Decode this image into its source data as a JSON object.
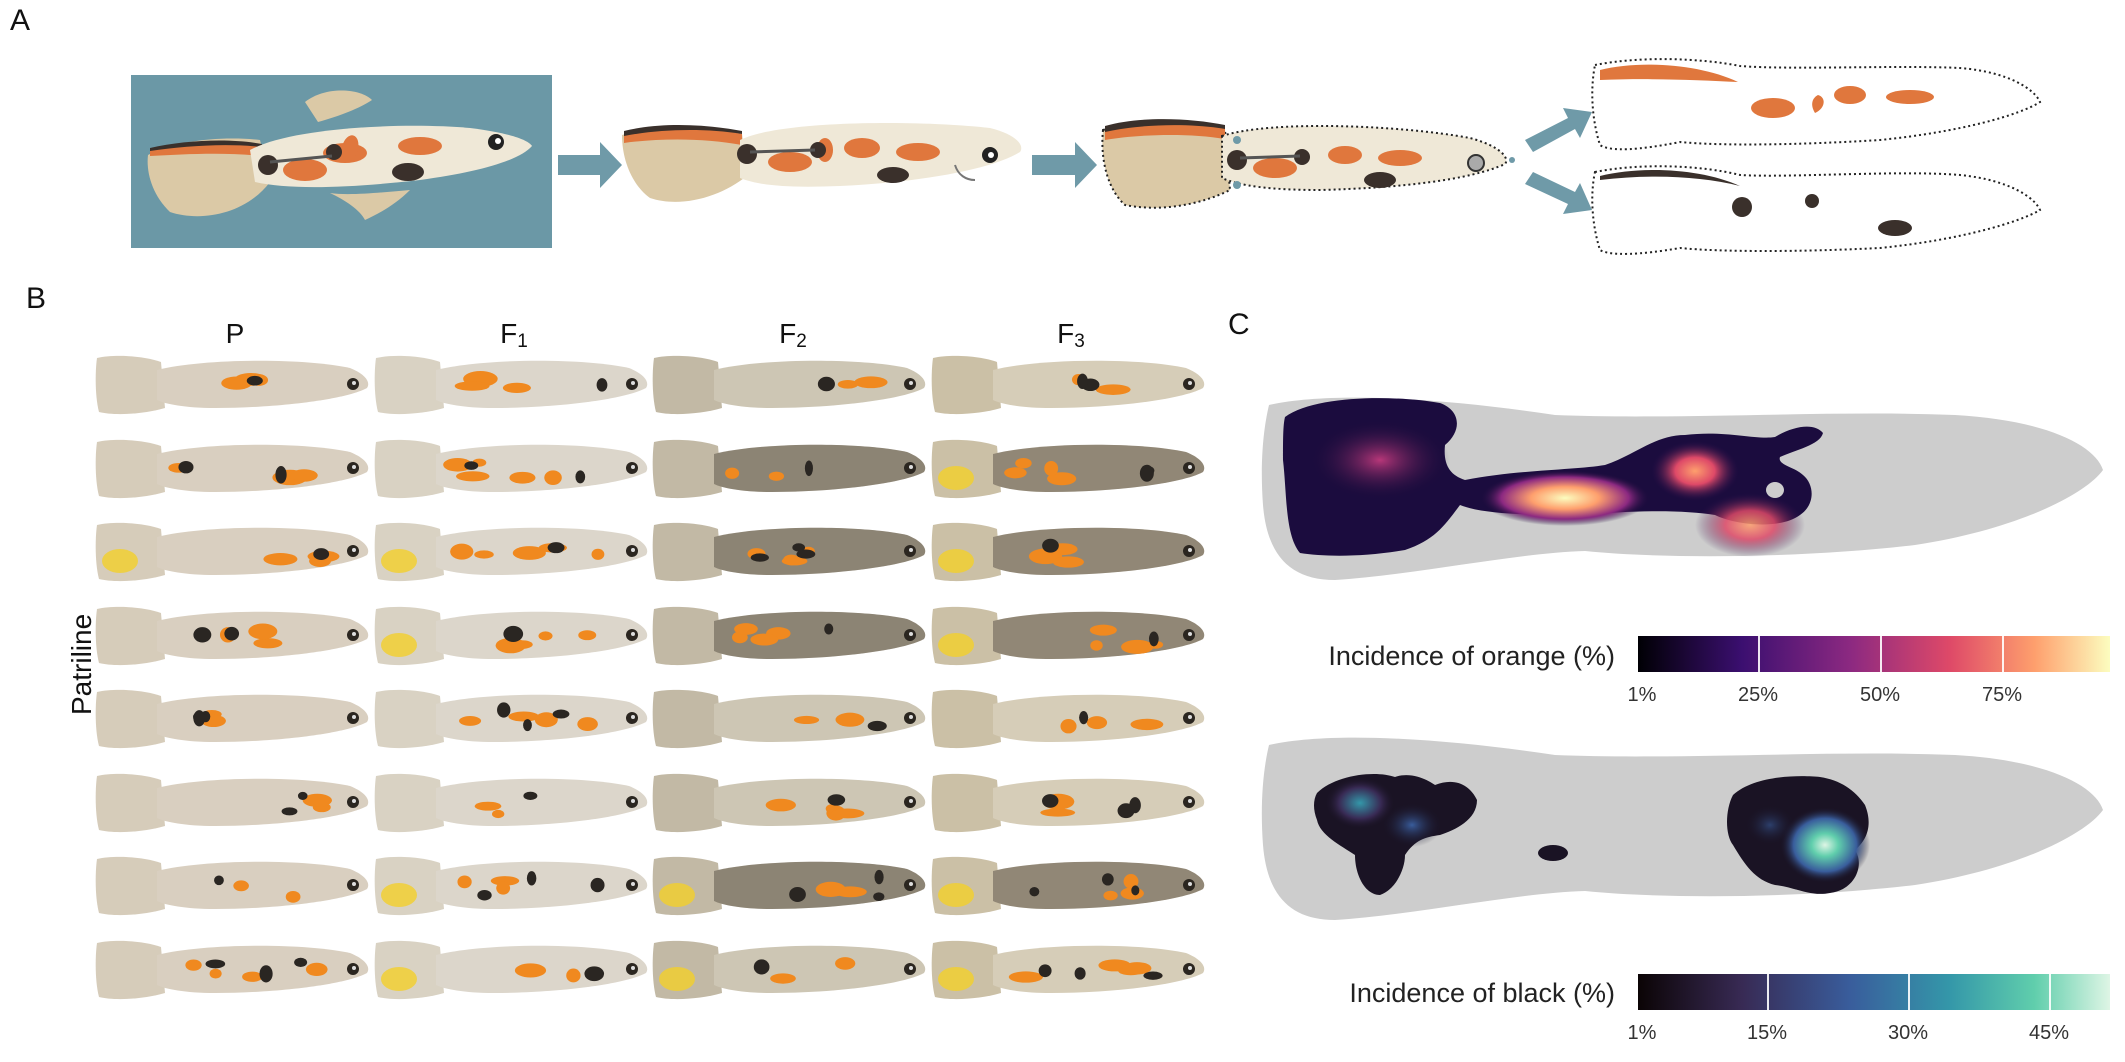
{
  "panels": {
    "a": "A",
    "b": "B",
    "c": "C"
  },
  "panel_b": {
    "columns": [
      {
        "base": "P",
        "sub": ""
      },
      {
        "base": "F",
        "sub": "1"
      },
      {
        "base": "F",
        "sub": "2"
      },
      {
        "base": "F",
        "sub": "3"
      }
    ],
    "row_label": "Patriline",
    "rows": 8
  },
  "panel_c": {
    "orange": {
      "title": "Incidence of orange (%)",
      "ticks": [
        "1%",
        "25%",
        "50%",
        "75%"
      ],
      "colormap": [
        "#000004",
        "#3b0f70",
        "#8c2981",
        "#de4968",
        "#fe9f6d",
        "#fcfdbf"
      ]
    },
    "black": {
      "title": "Incidence of black (%)",
      "ticks": [
        "1%",
        "15%",
        "30%",
        "45%"
      ],
      "colormap": [
        "#0b0405",
        "#382a54",
        "#395d9c",
        "#3497a9",
        "#60ceac",
        "#def5e5"
      ]
    },
    "silhouette_color": "#cdcdcd"
  },
  "colors": {
    "background_box": "#6b98a6",
    "arrow": "#6f9aa8",
    "fish_body": "#efe8d7",
    "fish_tail": "#dbc9a6",
    "orange_spot": "#e0773d",
    "black_spot": "#3a302b"
  }
}
